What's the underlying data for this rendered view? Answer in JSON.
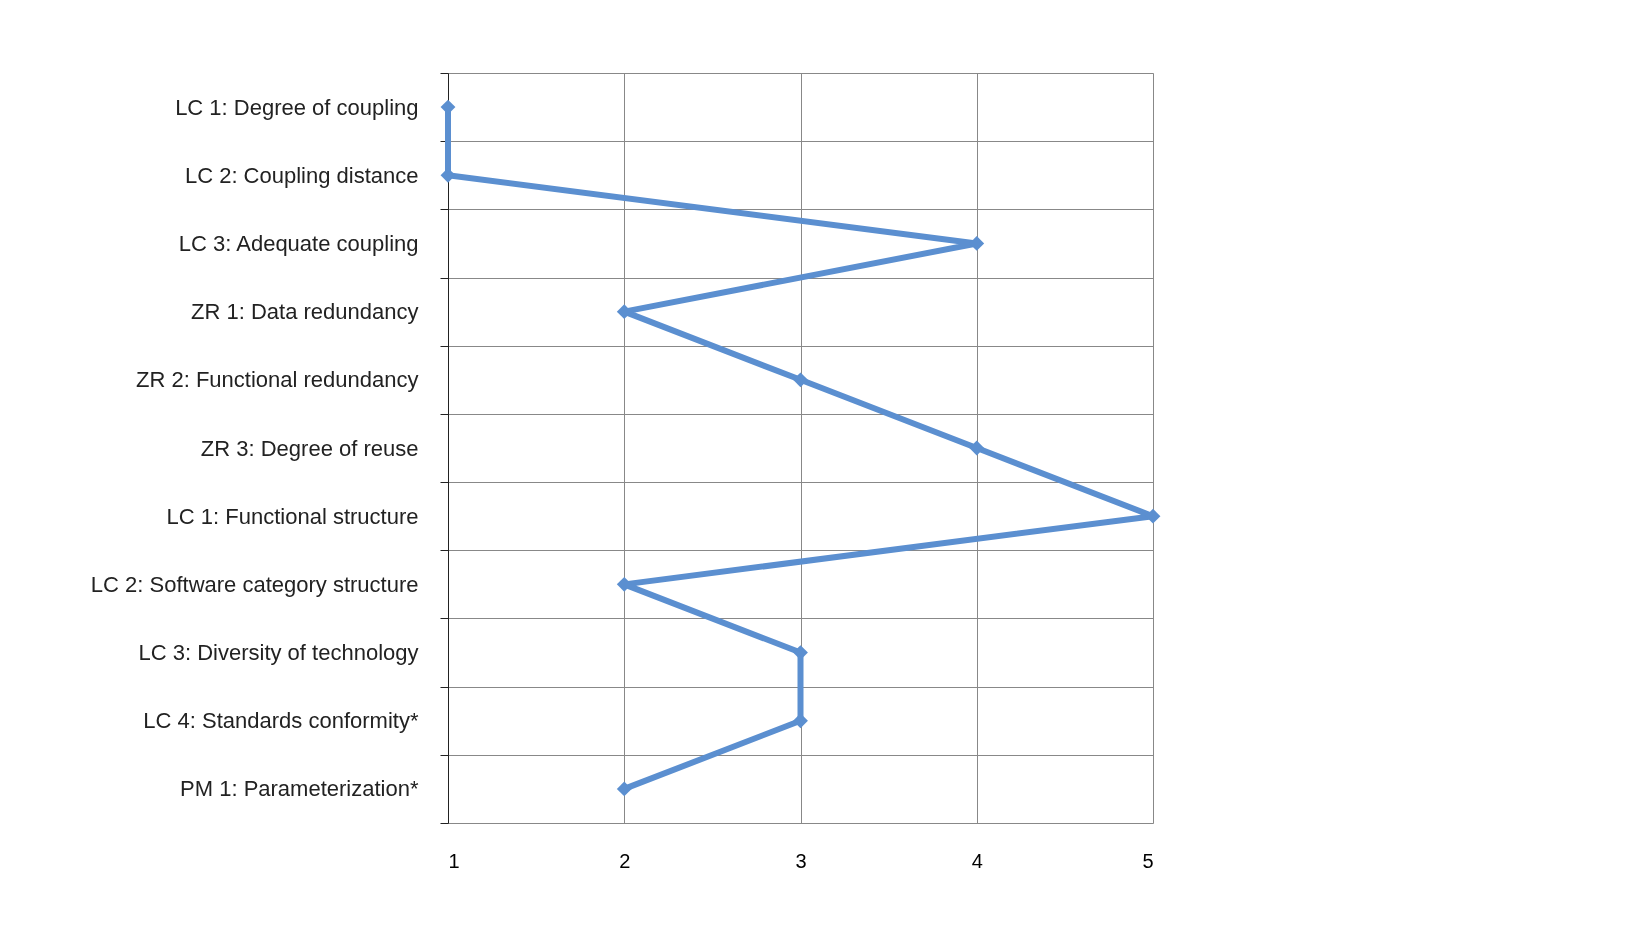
{
  "chart_data": {
    "type": "line",
    "orientation": "horizontal",
    "categories": [
      "LC 1: Degree of coupling",
      "LC 2: Coupling distance",
      "LC 3: Adequate coupling",
      "ZR 1: Data redundancy",
      "ZR 2: Functional redundancy",
      "ZR 3: Degree of reuse",
      "LC 1: Functional structure",
      "LC 2: Software category structure",
      "LC 3: Diversity of technology",
      "LC 4: Standards conformity*",
      "PM 1: Parameterization*"
    ],
    "series": [
      {
        "color": "#5b8fd0",
        "values": [
          1,
          1,
          4,
          2,
          3,
          4,
          5,
          2,
          3,
          3,
          2
        ]
      }
    ],
    "xlim": [
      1,
      5
    ],
    "xticks": [
      1,
      2,
      3,
      4,
      5
    ],
    "grid": true,
    "marker": "diamond",
    "line_style": "solid",
    "legend": false
  }
}
